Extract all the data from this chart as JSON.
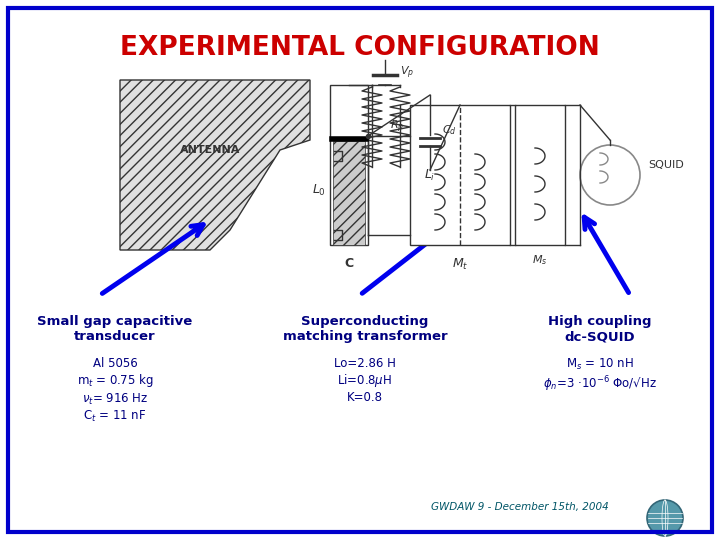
{
  "title": "EXPERIMENTAL CONFIGURATION",
  "title_color": "#cc0000",
  "bg_color": "#ffffff",
  "border_color": "#0000cc",
  "col1_header": "Small gap capacitive\ntransducer",
  "col2_header": "Superconducting\nmatching transformer",
  "col3_header": "High coupling\ndc-SQUID",
  "col1_body": "Al 5056\nm$_t$ = 0.75 kg\n$\\nu_t$= 916 Hz\nC$_t$ = 11 nF",
  "col2_body": "Lo=2.86 H\nLi=0.8$\\mu$H\nK=0.8",
  "col3_body": "M$_s$ = 10 nH\n$\\phi_n$=3 ·10$^{-6}$ Φo/√Hz",
  "footer": "GWDAW 9 - December 15th, 2004",
  "text_color_dark": "#000080",
  "text_color_body": "#191970",
  "arrow_color": "#0000ee",
  "diagram_line_color": "#333333",
  "hatch_color": "#999999"
}
